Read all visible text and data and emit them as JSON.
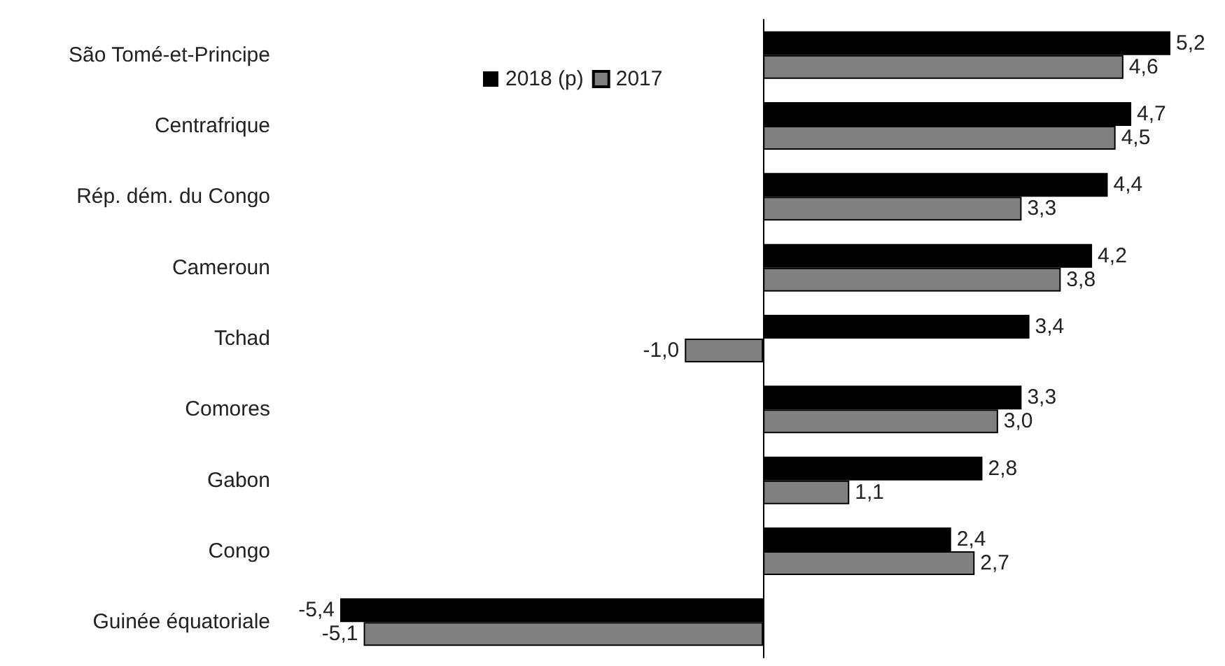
{
  "chart_data": {
    "type": "bar",
    "orientation": "horizontal",
    "categories": [
      "São Tomé-et-Principe",
      "Centrafrique",
      "Rép. dém. du Congo",
      "Cameroun",
      "Tchad",
      "Comores",
      "Gabon",
      "Congo",
      "Guinée équatoriale"
    ],
    "series": [
      {
        "name": "2018 (p)",
        "color": "#000000",
        "values": [
          5.2,
          4.7,
          4.4,
          4.2,
          3.4,
          3.3,
          2.8,
          2.4,
          -5.4
        ],
        "value_labels": [
          "5,2",
          "4,7",
          "4,4",
          "4,2",
          "3,4",
          "3,3",
          "2,8",
          "2,4",
          "-5,4"
        ]
      },
      {
        "name": "2017",
        "color": "#808080",
        "values": [
          4.6,
          4.5,
          3.3,
          3.8,
          -1.0,
          3.0,
          1.1,
          2.7,
          -5.1
        ],
        "value_labels": [
          "4,6",
          "4,5",
          "3,3",
          "3,8",
          "-1,0",
          "3,0",
          "1,1",
          "2,7",
          "-5,1"
        ]
      }
    ],
    "legend": "top",
    "grid": false
  }
}
